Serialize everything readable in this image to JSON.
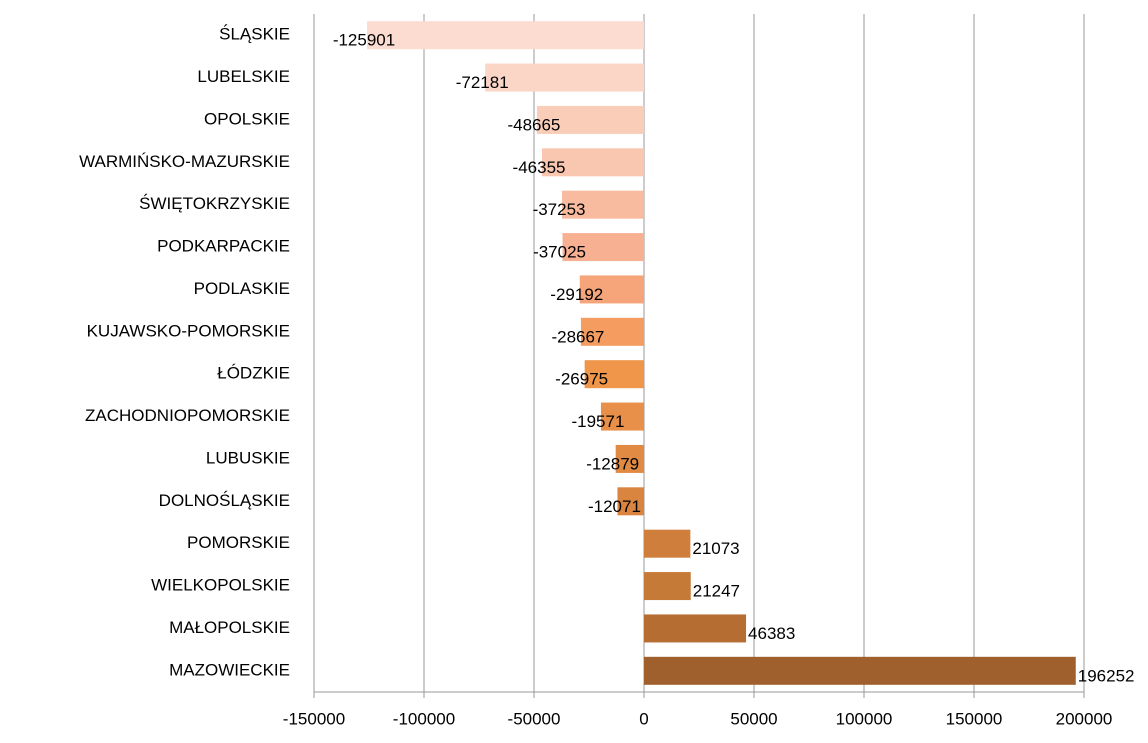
{
  "chart_data": {
    "type": "barh",
    "categories": [
      "ŚLĄSKIE",
      "LUBELSKIE",
      "OPOLSKIE",
      "WARMIŃSKO-MAZURSKIE",
      "ŚWIĘTOKRZYSKIE",
      "PODKARPACKIE",
      "PODLASKIE",
      "KUJAWSKO-POMORSKIE",
      "ŁÓDZKIE",
      "ZACHODNIOPOMORSKIE",
      "LUBUSKIE",
      "DOLNOŚLĄSKIE",
      "POMORSKIE",
      "WIELKOPOLSKIE",
      "MAŁOPOLSKIE",
      "MAZOWIECKIE"
    ],
    "values": [
      -125901,
      -72181,
      -48665,
      -46355,
      -37253,
      -37025,
      -29192,
      -28667,
      -26975,
      -19571,
      -12879,
      -12071,
      21073,
      21247,
      46383,
      196252
    ],
    "colors": [
      "#fcdcd0",
      "#fbd5c6",
      "#facdb9",
      "#f9c6b0",
      "#f8bb9f",
      "#f7b091",
      "#f6a57a",
      "#f59c60",
      "#f0964a",
      "#e8904a",
      "#e08a44",
      "#d98540",
      "#cf7f3b",
      "#c67a37",
      "#b56d31",
      "#a0602e"
    ],
    "xlim": [
      -150000,
      200000
    ],
    "xticks": [
      -150000,
      -100000,
      -50000,
      0,
      50000,
      100000,
      150000,
      200000
    ],
    "grid": true
  }
}
